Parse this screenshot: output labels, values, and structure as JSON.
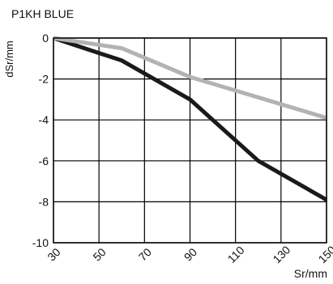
{
  "chart_data": {
    "type": "line",
    "title": "P1KH BLUE",
    "xlabel": "Sr/mm",
    "ylabel": "dSr/mm",
    "xlim": [
      30,
      150
    ],
    "ylim": [
      -10,
      0
    ],
    "x_ticks": [
      30,
      50,
      70,
      90,
      110,
      130,
      150
    ],
    "y_ticks": [
      0,
      -2,
      -4,
      -6,
      -8,
      -10
    ],
    "x_tick_labels": [
      "30",
      "50",
      "70",
      "90",
      "110",
      "130",
      "150"
    ],
    "y_tick_labels": [
      "0",
      "-2",
      "-4",
      "-6",
      "-8",
      "-10"
    ],
    "grid": true,
    "series": [
      {
        "color": "#1a1a1a",
        "x": [
          30,
          60,
          90,
          120,
          150
        ],
        "y": [
          0,
          -1.1,
          -3.0,
          -6.0,
          -7.9
        ]
      },
      {
        "color": "#b3b3b3",
        "x": [
          30,
          60,
          90,
          120,
          150
        ],
        "y": [
          0,
          -0.5,
          -1.9,
          -2.9,
          -3.9
        ]
      }
    ]
  }
}
